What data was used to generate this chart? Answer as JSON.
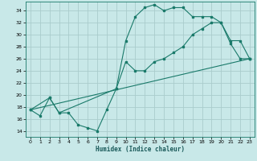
{
  "bg_color": "#c8e8e8",
  "grid_color": "#aacccc",
  "line_color": "#1a7a6a",
  "xlabel": "Humidex (Indice chaleur)",
  "xlim": [
    -0.5,
    23.5
  ],
  "ylim": [
    13,
    35.5
  ],
  "yticks": [
    14,
    16,
    18,
    20,
    22,
    24,
    26,
    28,
    30,
    32,
    34
  ],
  "xticks": [
    0,
    1,
    2,
    3,
    4,
    5,
    6,
    7,
    8,
    9,
    10,
    11,
    12,
    13,
    14,
    15,
    16,
    17,
    18,
    19,
    20,
    21,
    22,
    23
  ],
  "line1_x": [
    0,
    1,
    2,
    3,
    4,
    5,
    6,
    7,
    8,
    9,
    10,
    11,
    12,
    13,
    14,
    15,
    16,
    17,
    18,
    19,
    20,
    21,
    22,
    23
  ],
  "line1_y": [
    17.5,
    16.5,
    19.5,
    17.0,
    17.0,
    15.0,
    14.5,
    14.0,
    17.5,
    21.0,
    29.0,
    33.0,
    34.5,
    35.0,
    34.0,
    34.5,
    34.5,
    33.0,
    33.0,
    33.0,
    32.0,
    28.5,
    26.0,
    26.0
  ],
  "line2_x": [
    0,
    2,
    3,
    9,
    10,
    11,
    12,
    13,
    14,
    15,
    16,
    17,
    18,
    19,
    20,
    21,
    22,
    23
  ],
  "line2_y": [
    17.5,
    19.5,
    17.0,
    21.0,
    25.5,
    24.0,
    24.0,
    25.5,
    26.0,
    27.0,
    28.0,
    30.0,
    31.0,
    32.0,
    32.0,
    29.0,
    29.0,
    26.0
  ],
  "line3_x": [
    0,
    23
  ],
  "line3_y": [
    17.5,
    26.0
  ]
}
